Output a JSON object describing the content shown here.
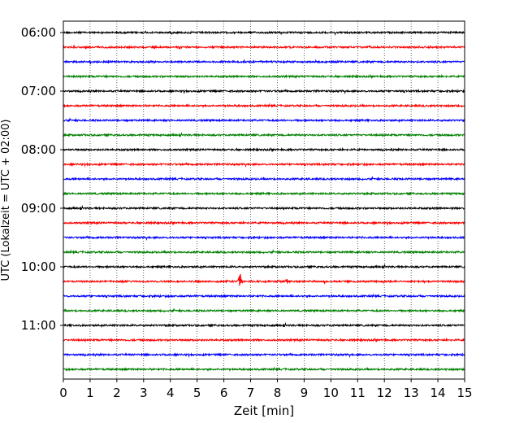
{
  "chart_data": {
    "type": "line",
    "title": "",
    "xlabel": "Zeit  [min]",
    "ylabel": "UTC (Lokalzeit = UTC + 02:00)",
    "xlim": [
      0,
      15
    ],
    "x_ticks": [
      "0",
      "1",
      "2",
      "3",
      "4",
      "5",
      "6",
      "7",
      "8",
      "9",
      "10",
      "11",
      "12",
      "13",
      "14",
      "15"
    ],
    "y_ticks": [
      "06:00",
      "07:00",
      "08:00",
      "09:00",
      "10:00",
      "11:00"
    ],
    "grid": "vertical dotted at each minute",
    "trace_interval_minutes": 15,
    "start_time": "06:00",
    "trace_colors": [
      "#000000",
      "#ff0000",
      "#0000ff",
      "#008000"
    ],
    "series": [
      {
        "start": "06:00",
        "color": "#000000",
        "events": []
      },
      {
        "start": "06:15",
        "color": "#ff0000",
        "events": []
      },
      {
        "start": "06:30",
        "color": "#0000ff",
        "events": []
      },
      {
        "start": "06:45",
        "color": "#008000",
        "events": []
      },
      {
        "start": "07:00",
        "color": "#000000",
        "events": []
      },
      {
        "start": "07:15",
        "color": "#ff0000",
        "events": []
      },
      {
        "start": "07:30",
        "color": "#0000ff",
        "events": []
      },
      {
        "start": "07:45",
        "color": "#008000",
        "events": []
      },
      {
        "start": "08:00",
        "color": "#000000",
        "events": []
      },
      {
        "start": "08:15",
        "color": "#ff0000",
        "events": []
      },
      {
        "start": "08:30",
        "color": "#0000ff",
        "events": []
      },
      {
        "start": "08:45",
        "color": "#008000",
        "events": []
      },
      {
        "start": "09:00",
        "color": "#000000",
        "events": []
      },
      {
        "start": "09:15",
        "color": "#ff0000",
        "events": []
      },
      {
        "start": "09:30",
        "color": "#0000ff",
        "events": []
      },
      {
        "start": "09:45",
        "color": "#008000",
        "events": []
      },
      {
        "start": "10:00",
        "color": "#000000",
        "events": []
      },
      {
        "start": "10:15",
        "color": "#ff0000",
        "events": [
          {
            "t": 6.6,
            "amp": 1.0
          },
          {
            "t": 8.35,
            "amp": 0.4
          }
        ]
      },
      {
        "start": "10:30",
        "color": "#0000ff",
        "events": []
      },
      {
        "start": "10:45",
        "color": "#008000",
        "events": []
      },
      {
        "start": "11:00",
        "color": "#000000",
        "events": []
      },
      {
        "start": "11:15",
        "color": "#ff0000",
        "events": []
      },
      {
        "start": "11:30",
        "color": "#0000ff",
        "events": []
      },
      {
        "start": "11:45",
        "color": "#008000",
        "events": []
      }
    ]
  }
}
